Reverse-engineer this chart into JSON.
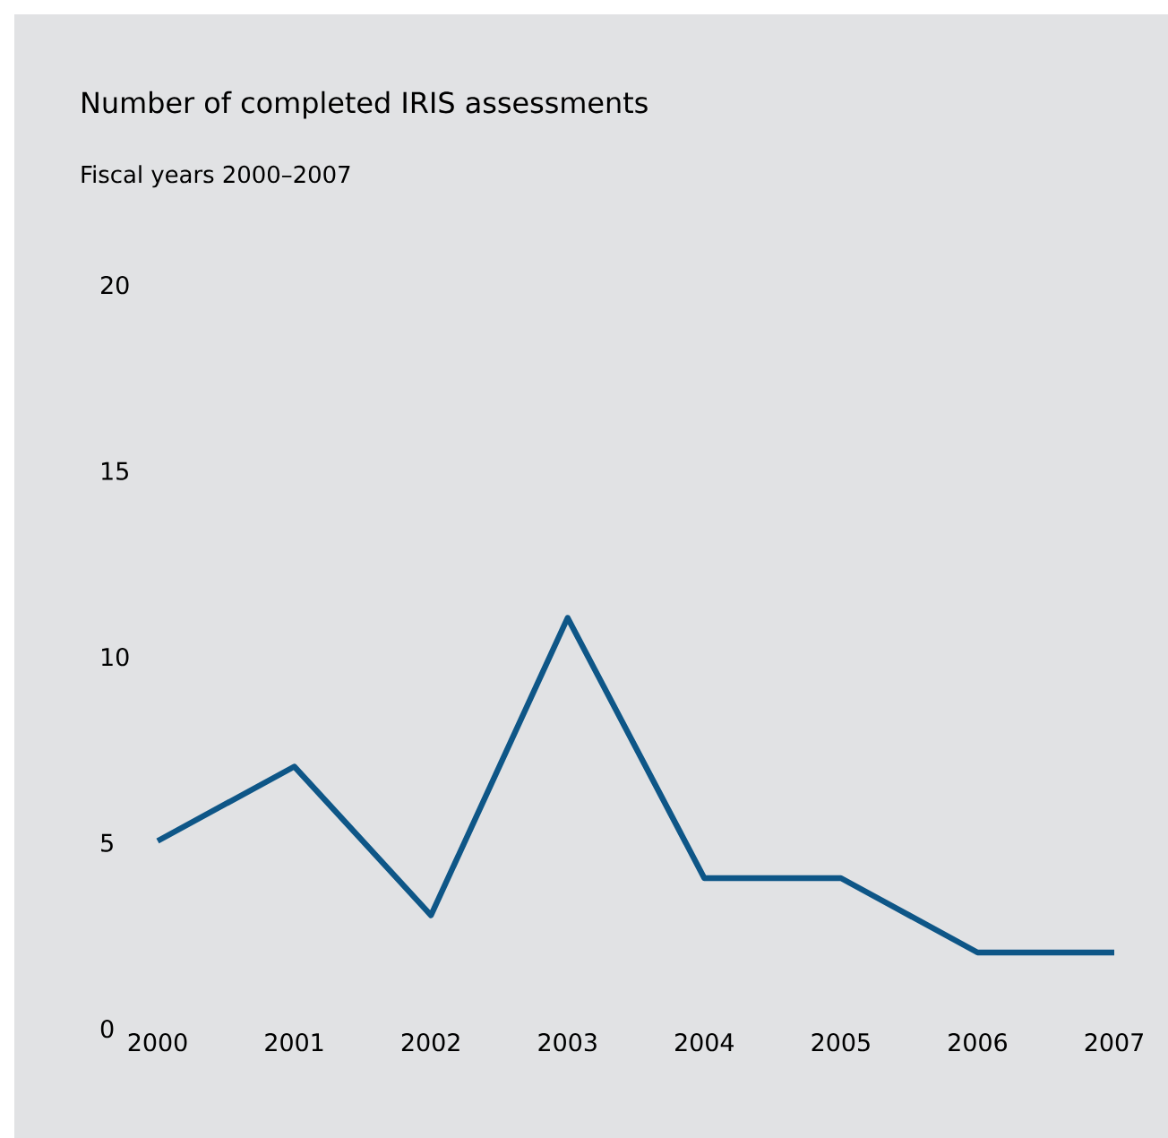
{
  "chart_data": {
    "type": "line",
    "title": "Number of completed IRIS assessments",
    "subtitle": "Fiscal years 2000–2007",
    "categories": [
      "2000",
      "2001",
      "2002",
      "2003",
      "2004",
      "2005",
      "2006",
      "2007"
    ],
    "series": [
      {
        "color": "#0e5687",
        "values": [
          5,
          7,
          3,
          11,
          4,
          4,
          2,
          2
        ]
      }
    ],
    "ylim": [
      0,
      20
    ],
    "yticks": [
      0,
      5,
      10,
      15,
      20
    ],
    "marker": "none",
    "line_style": "solid"
  }
}
